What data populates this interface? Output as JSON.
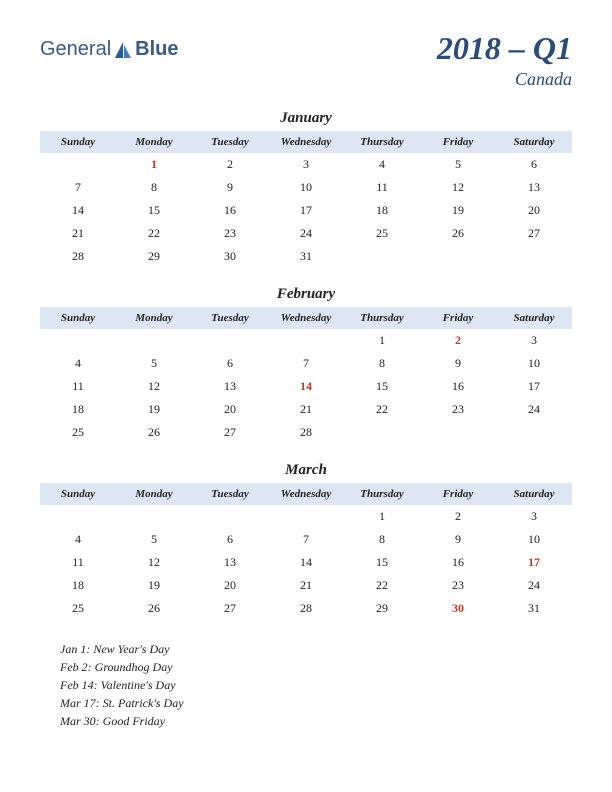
{
  "logo": {
    "text1": "General",
    "text2": "Blue"
  },
  "header": {
    "quarter": "2018 – Q1",
    "country": "Canada"
  },
  "dayHeaders": [
    "Sunday",
    "Monday",
    "Tuesday",
    "Wednesday",
    "Thursday",
    "Friday",
    "Saturday"
  ],
  "months": [
    {
      "name": "January",
      "weeks": [
        [
          "",
          "1",
          "2",
          "3",
          "4",
          "5",
          "6"
        ],
        [
          "7",
          "8",
          "9",
          "10",
          "11",
          "12",
          "13"
        ],
        [
          "14",
          "15",
          "16",
          "17",
          "18",
          "19",
          "20"
        ],
        [
          "21",
          "22",
          "23",
          "24",
          "25",
          "26",
          "27"
        ],
        [
          "28",
          "29",
          "30",
          "31",
          "",
          "",
          ""
        ]
      ],
      "holidays": [
        "1"
      ]
    },
    {
      "name": "February",
      "weeks": [
        [
          "",
          "",
          "",
          "",
          "1",
          "2",
          "3"
        ],
        [
          "4",
          "5",
          "6",
          "7",
          "8",
          "9",
          "10"
        ],
        [
          "11",
          "12",
          "13",
          "14",
          "15",
          "16",
          "17"
        ],
        [
          "18",
          "19",
          "20",
          "21",
          "22",
          "23",
          "24"
        ],
        [
          "25",
          "26",
          "27",
          "28",
          "",
          "",
          ""
        ]
      ],
      "holidays": [
        "2",
        "14"
      ]
    },
    {
      "name": "March",
      "weeks": [
        [
          "",
          "",
          "",
          "",
          "1",
          "2",
          "3"
        ],
        [
          "4",
          "5",
          "6",
          "7",
          "8",
          "9",
          "10"
        ],
        [
          "11",
          "12",
          "13",
          "14",
          "15",
          "16",
          "17"
        ],
        [
          "18",
          "19",
          "20",
          "21",
          "22",
          "23",
          "24"
        ],
        [
          "25",
          "26",
          "27",
          "28",
          "29",
          "30",
          "31"
        ]
      ],
      "holidays": [
        "17",
        "30"
      ]
    }
  ],
  "holidayList": [
    "Jan 1: New Year's Day",
    "Feb 2: Groundhog Day",
    "Feb 14: Valentine's Day",
    "Mar 17: St. Patrick's Day",
    "Mar 30: Good Friday"
  ],
  "colors": {
    "headerBg": "#dde6f4",
    "titleColor": "#2a4a7a",
    "holidayColor": "#c0392b",
    "textColor": "#222222",
    "logoColor": "#3a5a8a"
  },
  "typography": {
    "quarterTitleSize": 32,
    "countryTitleSize": 18,
    "monthNameSize": 15,
    "dayHeaderSize": 11,
    "cellSize": 12,
    "holidayListSize": 12
  }
}
